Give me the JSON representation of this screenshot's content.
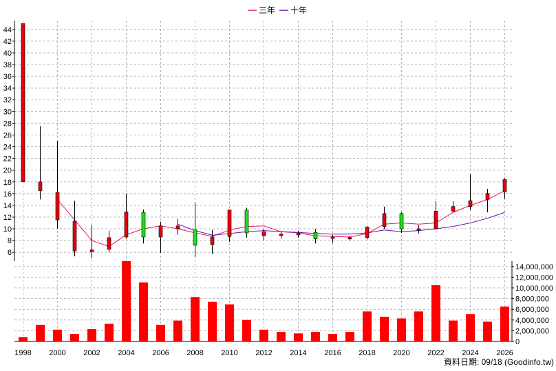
{
  "chart_data": [
    {
      "type": "candlestick",
      "legend": [
        {
          "name": "三年",
          "color": "#e8175d"
        },
        {
          "name": "十年",
          "color": "#6a0dad"
        }
      ],
      "x_tick_labels": [
        "1998",
        "2000",
        "2002",
        "2004",
        "2006",
        "2008",
        "2010",
        "2012",
        "2014",
        "2016",
        "2018",
        "2020",
        "2022",
        "2024",
        "2026"
      ],
      "y_tick_labels": [
        "6",
        "8",
        "10",
        "12",
        "14",
        "16",
        "18",
        "20",
        "22",
        "24",
        "26",
        "28",
        "30",
        "32",
        "34",
        "36",
        "38",
        "40",
        "42",
        "44"
      ],
      "ylim": [
        4.5,
        45.5
      ],
      "colors": {
        "up": "#e8000b",
        "down": "#22dd22",
        "grid": "#b4b4b4"
      },
      "candles": [
        {
          "year": 1998,
          "open": 18.0,
          "close": 45.0,
          "high": 45.0,
          "low": 18.0
        },
        {
          "year": 1999,
          "open": 16.5,
          "close": 18.0,
          "high": 27.5,
          "low": 15.0
        },
        {
          "year": 2000,
          "open": 11.5,
          "close": 16.2,
          "high": 25.0,
          "low": 10.0
        },
        {
          "year": 2001,
          "open": 6.2,
          "close": 11.3,
          "high": 14.8,
          "low": 5.3
        },
        {
          "year": 2002,
          "open": 6.1,
          "close": 6.4,
          "high": 10.6,
          "low": 5.0
        },
        {
          "year": 2003,
          "open": 6.5,
          "close": 8.5,
          "high": 9.7,
          "low": 6.0
        },
        {
          "year": 2004,
          "open": 8.6,
          "close": 12.9,
          "high": 16.0,
          "low": 8.3
        },
        {
          "year": 2005,
          "open": 12.8,
          "close": 8.6,
          "high": 13.3,
          "low": 7.5
        },
        {
          "year": 2006,
          "open": 8.6,
          "close": 10.5,
          "high": 11.2,
          "low": 5.9
        },
        {
          "year": 2007,
          "open": 10.0,
          "close": 10.5,
          "high": 11.7,
          "low": 9.0
        },
        {
          "year": 2008,
          "open": 9.8,
          "close": 7.2,
          "high": 14.5,
          "low": 5.2
        },
        {
          "year": 2009,
          "open": 7.3,
          "close": 8.6,
          "high": 9.8,
          "low": 5.7
        },
        {
          "year": 2010,
          "open": 8.7,
          "close": 13.2,
          "high": 13.3,
          "low": 7.8
        },
        {
          "year": 2011,
          "open": 13.2,
          "close": 9.3,
          "high": 13.6,
          "low": 8.5
        },
        {
          "year": 2012,
          "open": 8.8,
          "close": 9.5,
          "high": 10.0,
          "low": 8.0
        },
        {
          "year": 2013,
          "open": 9.0,
          "close": 9.1,
          "high": 9.6,
          "low": 8.3
        },
        {
          "year": 2014,
          "open": 9.0,
          "close": 9.2,
          "high": 9.7,
          "low": 8.5
        },
        {
          "year": 2015,
          "open": 9.4,
          "close": 8.3,
          "high": 10.0,
          "low": 7.5
        },
        {
          "year": 2016,
          "open": 8.4,
          "close": 8.6,
          "high": 9.0,
          "low": 7.6
        },
        {
          "year": 2017,
          "open": 8.3,
          "close": 8.5,
          "high": 8.8,
          "low": 8.0
        },
        {
          "year": 2018,
          "open": 8.5,
          "close": 10.3,
          "high": 10.5,
          "low": 8.2
        },
        {
          "year": 2019,
          "open": 10.4,
          "close": 12.6,
          "high": 13.8,
          "low": 10.0
        },
        {
          "year": 2020,
          "open": 12.6,
          "close": 10.0,
          "high": 12.8,
          "low": 9.3
        },
        {
          "year": 2021,
          "open": 9.8,
          "close": 10.0,
          "high": 10.6,
          "low": 9.2
        },
        {
          "year": 2022,
          "open": 10.0,
          "close": 13.0,
          "high": 14.7,
          "low": 9.9
        },
        {
          "year": 2023,
          "open": 13.0,
          "close": 13.8,
          "high": 14.7,
          "low": 12.9
        },
        {
          "year": 2024,
          "open": 13.8,
          "close": 14.8,
          "high": 19.3,
          "low": 13.2
        },
        {
          "year": 2025,
          "open": 15.0,
          "close": 16.0,
          "high": 16.8,
          "low": 12.8
        },
        {
          "year": 2026,
          "open": 16.3,
          "close": 18.4,
          "high": 18.6,
          "low": 15.1
        }
      ],
      "series": [
        {
          "name": "三年",
          "x": [
            2000,
            2001,
            2002,
            2003,
            2004,
            2005,
            2006,
            2007,
            2008,
            2009,
            2010,
            2011,
            2012,
            2013,
            2014,
            2015,
            2016,
            2017,
            2018,
            2019,
            2020,
            2021,
            2022,
            2023,
            2024,
            2025,
            2026
          ],
          "values": [
            15.0,
            11.5,
            8.0,
            7.0,
            9.0,
            10.0,
            10.5,
            10.0,
            9.3,
            8.7,
            9.8,
            10.4,
            10.5,
            9.5,
            9.3,
            8.8,
            8.7,
            8.6,
            9.2,
            10.8,
            11.0,
            10.8,
            11.0,
            12.8,
            14.0,
            15.0,
            16.5
          ]
        },
        {
          "name": "十年",
          "x": [
            2007,
            2008,
            2009,
            2010,
            2011,
            2012,
            2013,
            2014,
            2015,
            2016,
            2017,
            2018,
            2019,
            2020,
            2021,
            2022,
            2023,
            2024,
            2025,
            2026
          ],
          "values": [
            10.8,
            9.7,
            8.9,
            9.2,
            9.5,
            9.7,
            9.5,
            9.4,
            9.2,
            9.1,
            9.1,
            9.3,
            9.8,
            9.5,
            9.7,
            10.0,
            10.4,
            11.0,
            11.8,
            12.8
          ]
        }
      ]
    },
    {
      "type": "bar",
      "y_tick_labels": [
        "0",
        "2,000,000",
        "4,000,000",
        "6,000,000",
        "8,000,000",
        "10,000,000",
        "12,000,000",
        "14,000,000"
      ],
      "ylim": [
        0,
        15000000
      ],
      "color": "#ff0000",
      "x": [
        1998,
        1999,
        2000,
        2001,
        2002,
        2003,
        2004,
        2005,
        2006,
        2007,
        2008,
        2009,
        2010,
        2011,
        2012,
        2013,
        2014,
        2015,
        2016,
        2017,
        2018,
        2019,
        2020,
        2021,
        2022,
        2023,
        2024,
        2025,
        2026
      ],
      "values": [
        800000,
        3100000,
        2200000,
        1400000,
        2300000,
        3300000,
        15000000,
        11000000,
        3100000,
        3900000,
        8300000,
        7400000,
        6900000,
        4000000,
        2200000,
        1800000,
        1500000,
        1800000,
        1400000,
        1800000,
        5600000,
        4600000,
        4300000,
        5600000,
        10500000,
        3900000,
        5100000,
        3700000,
        6500000
      ]
    }
  ],
  "footer": {
    "text": "資料日期: 09/18 (Goodinfo.tw)"
  }
}
